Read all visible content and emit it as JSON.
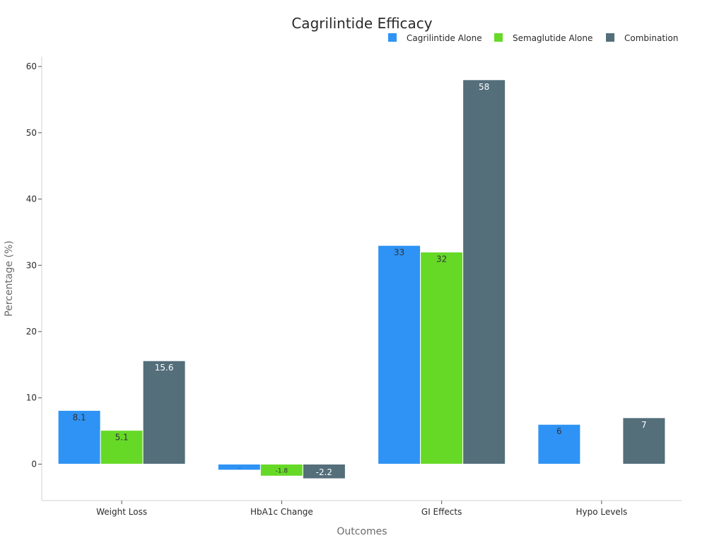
{
  "chart_data": {
    "type": "bar",
    "title": "Cagrilintide Efficacy",
    "xlabel": "Outcomes",
    "ylabel": "Percentage (%)",
    "categories": [
      "Weight Loss",
      "HbA1c Change",
      "GI Effects",
      "Hypo Levels"
    ],
    "series": [
      {
        "name": "Cagrilintide Alone",
        "color": "#2e93f5",
        "values": [
          8.1,
          -0.9,
          33,
          6
        ],
        "labels": [
          "8.1",
          "..",
          "33",
          "6"
        ],
        "label_colors": [
          "#333333",
          "#333333",
          "#333333",
          "#333333"
        ]
      },
      {
        "name": "Semaglutide Alone",
        "color": "#66d927",
        "values": [
          5.1,
          -1.8,
          32,
          null
        ],
        "labels": [
          "5.1",
          "-1.8",
          "32",
          ""
        ],
        "label_colors": [
          "#333333",
          "#333333",
          "#333333",
          "#333333"
        ]
      },
      {
        "name": "Combination",
        "color": "#546e7a",
        "values": [
          15.6,
          -2.2,
          58,
          7
        ],
        "labels": [
          "15.6",
          "-2.2",
          "58",
          "7"
        ],
        "label_colors": [
          "#ffffff",
          "#ffffff",
          "#ffffff",
          "#ffffff"
        ]
      }
    ],
    "ylim": [
      -5.5,
      61.5
    ],
    "yticks": [
      0,
      10,
      20,
      30,
      40,
      50,
      60
    ],
    "grid": false,
    "legend_position": "top-right"
  }
}
